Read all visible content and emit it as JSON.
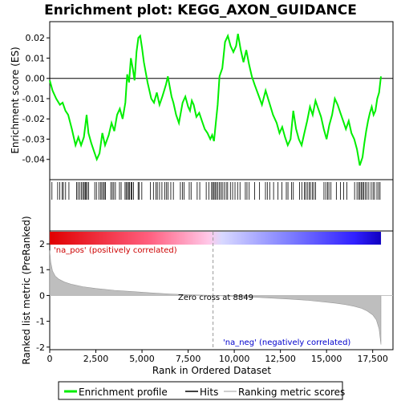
{
  "chart_data": {
    "type": "line",
    "title": "Enrichment plot: KEGG_AXON_GUIDANCE",
    "es_panel": {
      "ylabel": "Enrichment score (ES)",
      "ylim": [
        -0.05,
        0.028
      ],
      "yticks": [
        0.02,
        0.01,
        0.0,
        -0.01,
        -0.02,
        -0.03,
        -0.04
      ],
      "ytick_labels": [
        "0.02",
        "0.01",
        "0.00",
        "-0.01",
        "-0.02",
        "-0.03",
        "-0.04"
      ],
      "series": [
        {
          "name": "Enrichment profile",
          "color": "#00ee00",
          "x": [
            0,
            150,
            350,
            550,
            700,
            850,
            1000,
            1200,
            1400,
            1550,
            1700,
            1850,
            2000,
            2100,
            2250,
            2400,
            2550,
            2700,
            2850,
            3000,
            3200,
            3350,
            3500,
            3650,
            3800,
            3950,
            4100,
            4200,
            4300,
            4400,
            4500,
            4600,
            4700,
            4800,
            4900,
            5000,
            5100,
            5300,
            5500,
            5650,
            5800,
            5950,
            6100,
            6200,
            6300,
            6400,
            6500,
            6600,
            6700,
            6850,
            7000,
            7200,
            7350,
            7500,
            7600,
            7700,
            7800,
            7950,
            8100,
            8250,
            8400,
            8550,
            8700,
            8800,
            8900,
            9000,
            9100,
            9200,
            9350,
            9500,
            9650,
            9800,
            9950,
            10100,
            10200,
            10350,
            10500,
            10650,
            10800,
            10950,
            11100,
            11300,
            11500,
            11700,
            11900,
            12100,
            12300,
            12450,
            12600,
            12750,
            12900,
            13050,
            13200,
            13350,
            13500,
            13650,
            13800,
            13950,
            14100,
            14250,
            14400,
            14550,
            14700,
            14850,
            15000,
            15150,
            15300,
            15450,
            15600,
            15750,
            15900,
            16050,
            16200,
            16350,
            16500,
            16650,
            16800,
            16950,
            17050,
            17150,
            17250,
            17350,
            17450,
            17550,
            17650,
            17750,
            17850,
            17950
          ],
          "y": [
            -0.001,
            -0.006,
            -0.01,
            -0.013,
            -0.012,
            -0.016,
            -0.018,
            -0.025,
            -0.033,
            -0.029,
            -0.033,
            -0.029,
            -0.018,
            -0.027,
            -0.032,
            -0.036,
            -0.04,
            -0.037,
            -0.027,
            -0.033,
            -0.028,
            -0.022,
            -0.026,
            -0.018,
            -0.015,
            -0.02,
            -0.012,
            0.002,
            -0.002,
            0.01,
            0.005,
            -0.001,
            0.013,
            0.02,
            0.021,
            0.015,
            0.008,
            -0.002,
            -0.01,
            -0.012,
            -0.007,
            -0.013,
            -0.009,
            -0.006,
            -0.003,
            0.001,
            -0.004,
            -0.009,
            -0.012,
            -0.018,
            -0.022,
            -0.012,
            -0.009,
            -0.014,
            -0.016,
            -0.011,
            -0.013,
            -0.019,
            -0.017,
            -0.021,
            -0.025,
            -0.027,
            -0.03,
            -0.028,
            -0.031,
            -0.022,
            -0.013,
            0.001,
            0.005,
            0.018,
            0.021,
            0.016,
            0.013,
            0.016,
            0.022,
            0.014,
            0.008,
            0.014,
            0.007,
            0.001,
            -0.003,
            -0.008,
            -0.013,
            -0.006,
            -0.012,
            -0.018,
            -0.022,
            -0.027,
            -0.024,
            -0.029,
            -0.033,
            -0.03,
            -0.016,
            -0.025,
            -0.03,
            -0.033,
            -0.027,
            -0.021,
            -0.014,
            -0.018,
            -0.011,
            -0.015,
            -0.019,
            -0.025,
            -0.03,
            -0.023,
            -0.018,
            -0.01,
            -0.013,
            -0.017,
            -0.021,
            -0.025,
            -0.021,
            -0.027,
            -0.03,
            -0.035,
            -0.043,
            -0.039,
            -0.032,
            -0.026,
            -0.021,
            -0.017,
            -0.014,
            -0.018,
            -0.016,
            -0.01,
            -0.007,
            0.001
          ]
        }
      ]
    },
    "hits_panel": {
      "legend_label": "Hits",
      "positions": [
        120,
        430,
        540,
        670,
        740,
        860,
        1040,
        1460,
        1530,
        1620,
        1710,
        1790,
        1860,
        1920,
        1960,
        2030,
        2110,
        2440,
        2530,
        2660,
        2750,
        2820,
        2900,
        2960,
        3020,
        3310,
        3390,
        3470,
        3560,
        3780,
        3870,
        4080,
        4140,
        4210,
        4270,
        4330,
        4410,
        4450,
        4540,
        4790,
        4840,
        4990,
        5460,
        5620,
        5750,
        5830,
        5950,
        6080,
        6240,
        6330,
        6410,
        6560,
        6700,
        7080,
        7190,
        7280,
        7560,
        7660,
        7990,
        8130,
        8480,
        8620,
        8770,
        8830,
        8900,
        8960,
        9030,
        9110,
        9190,
        9270,
        9350,
        9450,
        9560,
        9640,
        9790,
        9910,
        10040,
        10180,
        10310,
        10600,
        10690,
        10810,
        11100,
        11370,
        11690,
        11790,
        11920,
        12130,
        12370,
        12580,
        12820,
        12910,
        13100,
        13200,
        13540,
        13660,
        13800,
        13870,
        13960,
        14060,
        14130,
        14230,
        14310,
        14410,
        14860,
        14960,
        15060,
        15130,
        15240,
        15530,
        15750,
        15930,
        16100,
        16520,
        16650,
        16740,
        16810,
        16890,
        16950,
        17020,
        17100,
        17190,
        17290,
        17420,
        17520,
        17600,
        17730,
        17820,
        17900
      ]
    },
    "rank_panel": {
      "ylabel": "Ranked list metric (PreRanked)",
      "xlabel": "Rank in Ordered Dataset",
      "ylim": [
        -2.1,
        2.5
      ],
      "yticks": [
        2,
        1,
        0,
        -1,
        -2
      ],
      "ytick_labels": [
        "2",
        "1",
        "0",
        "-1",
        "-2"
      ],
      "color": "#bebebe",
      "metric_x": [
        0,
        50,
        150,
        300,
        500,
        800,
        1200,
        1800,
        2500,
        3500,
        4500,
        5500,
        6500,
        7500,
        8849,
        10000,
        11000,
        12000,
        13000,
        14000,
        15000,
        15500,
        16000,
        16500,
        16900,
        17200,
        17500,
        17700,
        17850,
        17950
      ],
      "metric_y": [
        1.75,
        1.3,
        0.95,
        0.75,
        0.63,
        0.52,
        0.43,
        0.34,
        0.27,
        0.2,
        0.15,
        0.1,
        0.06,
        0.03,
        0.0,
        -0.03,
        -0.06,
        -0.1,
        -0.14,
        -0.19,
        -0.26,
        -0.3,
        -0.35,
        -0.42,
        -0.5,
        -0.6,
        -0.75,
        -0.95,
        -1.3,
        -1.9
      ],
      "zero_cross_label": "Zero cross at 8849",
      "zero_cross_rank": 8849,
      "pos_label": "'na_pos' (positively correlated)",
      "neg_label": "'na_neg' (negatively correlated)",
      "pos_color": "#ff0000",
      "neg_color": "#0000ff"
    },
    "x_axis": {
      "xlim": [
        0,
        18600
      ],
      "xticks": [
        0,
        2500,
        5000,
        7500,
        10000,
        12500,
        15000,
        17500
      ],
      "xtick_labels": [
        "0",
        "2,500",
        "5,000",
        "7,500",
        "10,000",
        "12,500",
        "15,000",
        "17,500"
      ],
      "n_genes": 17950
    },
    "legend": {
      "items": [
        {
          "label": "Enrichment profile",
          "color": "#00ee00"
        },
        {
          "label": "Hits",
          "color": "#000000"
        },
        {
          "label": "Ranking metric scores",
          "color": "#bebebe"
        }
      ]
    }
  }
}
